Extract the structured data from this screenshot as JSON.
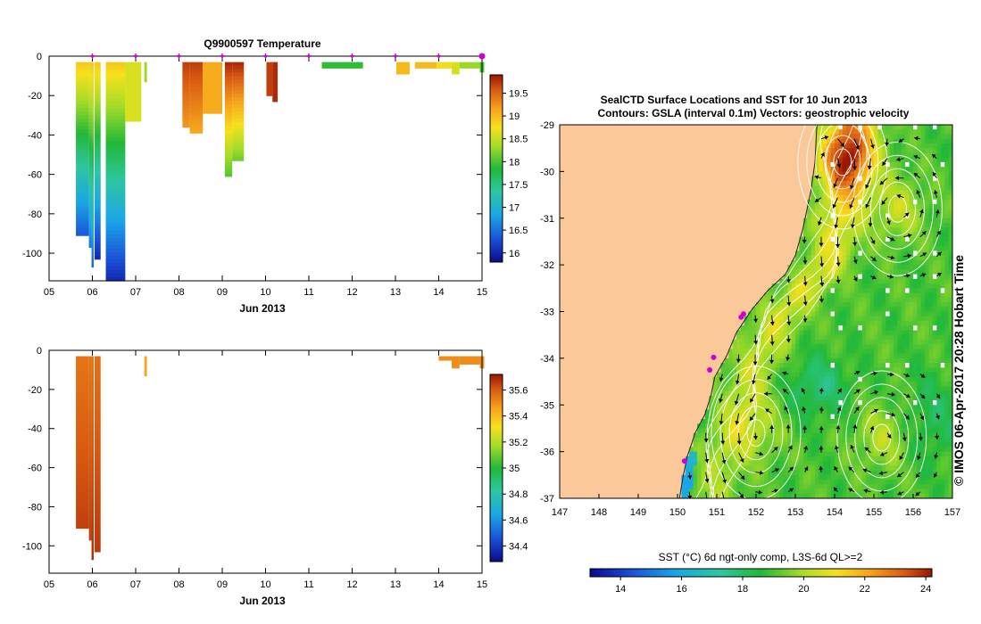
{
  "colors": {
    "land": "#fbc89a",
    "background": "#ffffff",
    "axis": "#000000",
    "marker": "#d000d0",
    "contour": "#ffffff"
  },
  "temperature_cbar": {
    "ticks": [
      "19.5",
      "19",
      "18.5",
      "18",
      "17.5",
      "17",
      "16.5",
      "16"
    ]
  },
  "salinity_cbar": {
    "ticks": [
      "35.6",
      "35.4",
      "35.2",
      "35",
      "34.8",
      "34.6",
      "34.4"
    ]
  },
  "sst_cbar": {
    "ticks": [
      "14",
      "16",
      "18",
      "20",
      "22",
      "24"
    ]
  },
  "map": {
    "title": "SealCTD Surface Locations and SST for 10 Jun 2013",
    "subtitle": "Contours: GSLA (interval 0.1m) Vectors: geostrophic velocity",
    "lon_ticks": [
      "147",
      "148",
      "149",
      "150",
      "151",
      "152",
      "153",
      "154",
      "155",
      "156",
      "157"
    ],
    "lat_ticks": [
      "-29",
      "-30",
      "-31",
      "-32",
      "-33",
      "-34",
      "-35",
      "-36",
      "-37"
    ],
    "colorbar_label": "SST (°C) 6d ngt-only comp, L3S-6d QL>=2",
    "credit": "© IMOS 06-Apr-2017 20:28 Hobart Time"
  },
  "chart_data": [
    {
      "type": "heatmap",
      "title": "Q9900597  Temperature",
      "xlabel": "Jun 2013",
      "ylabel": "",
      "x_ticks": [
        "05",
        "06",
        "07",
        "08",
        "09",
        "10",
        "11",
        "12",
        "13",
        "14",
        "15"
      ],
      "y_ticks": [
        "0",
        "-20",
        "-40",
        "-60",
        "-80",
        "-100"
      ],
      "xlim": [
        5,
        15
      ],
      "ylim": [
        -114,
        0
      ],
      "colorbar_range": [
        15.8,
        19.9
      ],
      "casts": [
        {
          "t0": 5.62,
          "t1": 5.92,
          "depth": 91,
          "top": 18.9,
          "bottom": 16.3
        },
        {
          "t0": 5.92,
          "t1": 5.98,
          "depth": 97,
          "top": 18.9,
          "bottom": 16.5
        },
        {
          "t0": 5.98,
          "t1": 6.03,
          "depth": 107,
          "top": 18.9,
          "bottom": 16.4
        },
        {
          "t0": 6.05,
          "t1": 6.19,
          "depth": 103,
          "top": 18.9,
          "bottom": 16.0
        },
        {
          "t0": 6.31,
          "t1": 6.76,
          "depth": 114,
          "top": 18.9,
          "bottom": 16.0
        },
        {
          "t0": 6.76,
          "t1": 7.13,
          "depth": 33,
          "top": 18.6,
          "bottom": 18.6
        },
        {
          "t0": 7.2,
          "t1": 7.26,
          "depth": 13,
          "top": 18.3,
          "bottom": 18.3
        },
        {
          "t0": 8.08,
          "t1": 8.25,
          "depth": 36,
          "top": 19.7,
          "bottom": 19.2
        },
        {
          "t0": 8.25,
          "t1": 8.55,
          "depth": 39,
          "top": 19.7,
          "bottom": 19.1
        },
        {
          "t0": 8.55,
          "t1": 9.0,
          "depth": 29,
          "top": 19.1,
          "bottom": 19.1
        },
        {
          "t0": 9.06,
          "t1": 9.23,
          "depth": 61,
          "top": 19.8,
          "bottom": 18.0
        },
        {
          "t0": 9.23,
          "t1": 9.5,
          "depth": 53,
          "top": 19.8,
          "bottom": 18.1
        },
        {
          "t0": 10.02,
          "t1": 10.16,
          "depth": 20,
          "top": 19.7,
          "bottom": 19.7
        },
        {
          "t0": 10.16,
          "t1": 10.28,
          "depth": 23,
          "top": 19.8,
          "bottom": 19.8
        },
        {
          "t0": 11.3,
          "t1": 12.25,
          "depth": 6,
          "top": 17.9,
          "bottom": 17.9
        },
        {
          "t0": 13.02,
          "t1": 13.33,
          "depth": 9,
          "top": 19.0,
          "bottom": 19.0
        },
        {
          "t0": 13.45,
          "t1": 13.95,
          "depth": 6,
          "top": 19.0,
          "bottom": 19.0
        },
        {
          "t0": 13.95,
          "t1": 14.3,
          "depth": 6,
          "top": 18.7,
          "bottom": 18.7
        },
        {
          "t0": 14.3,
          "t1": 14.48,
          "depth": 9,
          "top": 18.6,
          "bottom": 18.6
        },
        {
          "t0": 14.48,
          "t1": 14.95,
          "depth": 6,
          "top": 18.3,
          "bottom": 18.3
        },
        {
          "t0": 14.95,
          "t1": 15.05,
          "depth": 8,
          "top": 18.0,
          "bottom": 18.0
        }
      ],
      "surface_markers": [
        6.0,
        7.0,
        8.0,
        9.0,
        10.0,
        11.0,
        12.0,
        13.0,
        14.0,
        15.0
      ]
    },
    {
      "type": "heatmap",
      "title": "",
      "xlabel": "Jun 2013",
      "ylabel": "",
      "x_ticks": [
        "05",
        "06",
        "07",
        "08",
        "09",
        "10",
        "11",
        "12",
        "13",
        "14",
        "15"
      ],
      "y_ticks": [
        "0",
        "-20",
        "-40",
        "-60",
        "-80",
        "-100"
      ],
      "xlim": [
        5,
        15
      ],
      "ylim": [
        -114,
        0
      ],
      "colorbar_range": [
        34.28,
        35.72
      ],
      "casts": [
        {
          "t0": 5.62,
          "t1": 5.92,
          "depth": 91,
          "top": 35.55,
          "bottom": 35.65
        },
        {
          "t0": 5.92,
          "t1": 5.98,
          "depth": 97,
          "top": 35.55,
          "bottom": 35.65
        },
        {
          "t0": 5.98,
          "t1": 6.03,
          "depth": 107,
          "top": 35.55,
          "bottom": 35.68
        },
        {
          "t0": 6.05,
          "t1": 6.19,
          "depth": 103,
          "top": 35.56,
          "bottom": 35.66
        },
        {
          "t0": 7.2,
          "t1": 7.26,
          "depth": 13,
          "top": 35.45,
          "bottom": 35.45
        },
        {
          "t0": 14.0,
          "t1": 14.3,
          "depth": 5,
          "top": 35.5,
          "bottom": 35.5
        },
        {
          "t0": 14.3,
          "t1": 14.48,
          "depth": 9,
          "top": 35.5,
          "bottom": 35.5
        },
        {
          "t0": 14.48,
          "t1": 14.95,
          "depth": 7,
          "top": 35.5,
          "bottom": 35.5
        },
        {
          "t0": 14.95,
          "t1": 15.05,
          "depth": 9,
          "top": 35.5,
          "bottom": 35.5
        }
      ]
    },
    {
      "type": "heatmap",
      "title": "SealCTD Surface Locations and SST for 10 Jun 2013",
      "xlabel": "",
      "ylabel": "",
      "xlim": [
        147,
        157
      ],
      "ylim": [
        -37,
        -29
      ],
      "colorbar_range": [
        13,
        24.2
      ],
      "coast": [
        [
          153.55,
          -29.0
        ],
        [
          153.5,
          -29.8
        ],
        [
          153.4,
          -30.4
        ],
        [
          153.2,
          -31.2
        ],
        [
          153.0,
          -31.8
        ],
        [
          152.75,
          -32.2
        ],
        [
          152.3,
          -32.55
        ],
        [
          151.9,
          -32.95
        ],
        [
          151.5,
          -33.45
        ],
        [
          151.25,
          -33.95
        ],
        [
          150.95,
          -34.4
        ],
        [
          150.85,
          -34.8
        ],
        [
          150.7,
          -35.2
        ],
        [
          150.45,
          -35.6
        ],
        [
          150.25,
          -36.1
        ],
        [
          150.15,
          -36.5
        ],
        [
          150.05,
          -37.0
        ]
      ],
      "float_track": [
        [
          151.68,
          -33.05
        ],
        [
          151.62,
          -33.12
        ],
        [
          150.92,
          -33.98
        ],
        [
          150.82,
          -34.25
        ],
        [
          150.18,
          -36.2
        ]
      ],
      "eddies": [
        {
          "lon": 152.0,
          "lat": -35.6,
          "core": 20.8
        },
        {
          "lon": 155.2,
          "lat": -35.7,
          "core": 21.0
        },
        {
          "lon": 155.6,
          "lat": -30.8,
          "core": 21.3
        },
        {
          "lon": 154.2,
          "lat": -29.8,
          "core": 22.8
        }
      ]
    }
  ]
}
